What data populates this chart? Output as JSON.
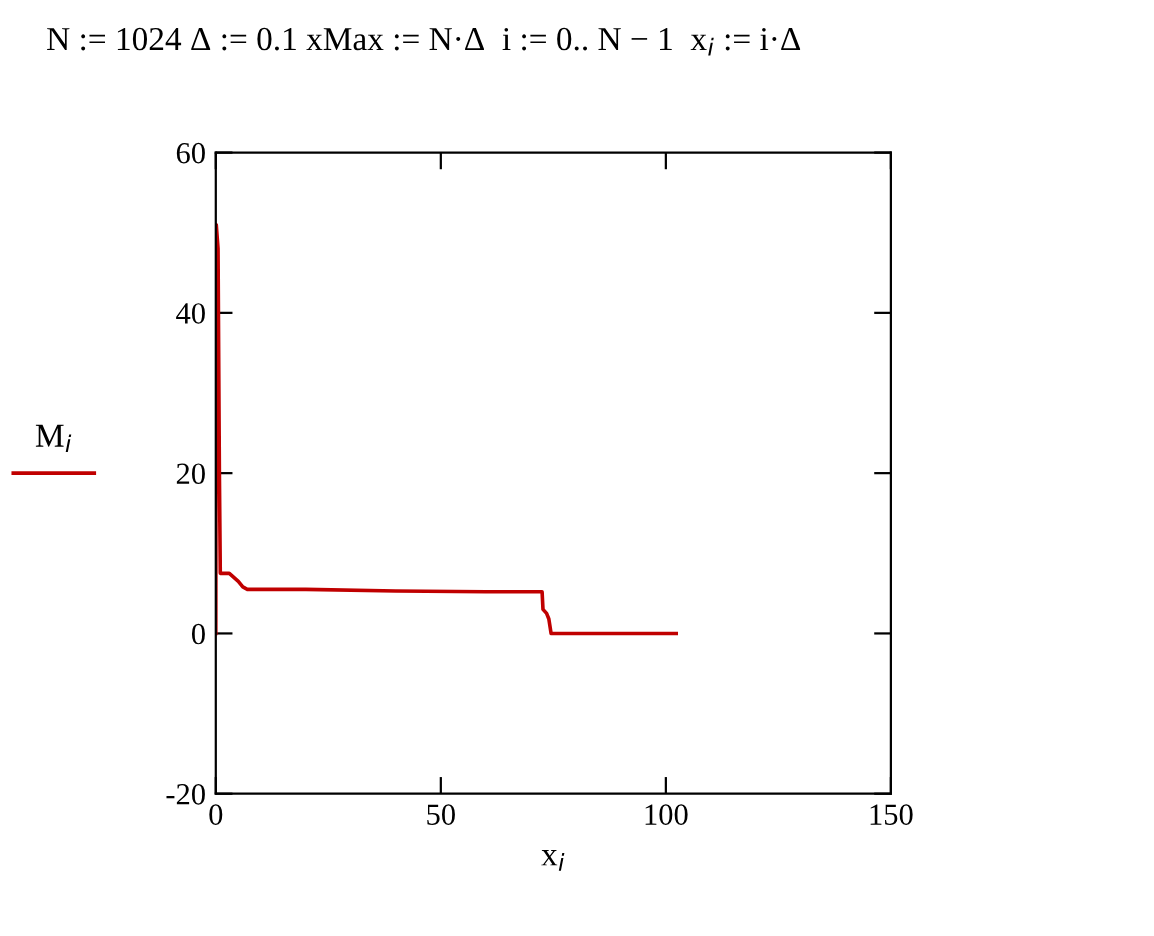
{
  "chart_data": {
    "type": "line",
    "title": "N := 1024 Δ := 0.1 xMax := N·Δ  i := 0.. N − 1  x$_{i}$ := i·Δ",
    "xlabel": "x$_{i}$",
    "legend": "left",
    "series": [
      {
        "name": "M$_{i}$",
        "color": "#c00000",
        "x": [
          0,
          0.1,
          0.5,
          0.8,
          1.0,
          3,
          4,
          5,
          6,
          7,
          20,
          40,
          60,
          72.5,
          72.7,
          73.5,
          74,
          74.5,
          102.3
        ],
        "values": [
          0,
          51,
          48,
          20,
          7.5,
          7.5,
          7,
          6.5,
          5.8,
          5.5,
          5.5,
          5.3,
          5.2,
          5.2,
          3,
          2.5,
          1.8,
          0,
          0
        ]
      }
    ],
    "xlim": [
      0,
      150
    ],
    "xticks": [
      0,
      50,
      100,
      150
    ],
    "ylim": [
      -20,
      60
    ],
    "yticks": [
      -20,
      0,
      20,
      40,
      60
    ],
    "grid": false,
    "line_style": "solid",
    "marker": "none"
  }
}
